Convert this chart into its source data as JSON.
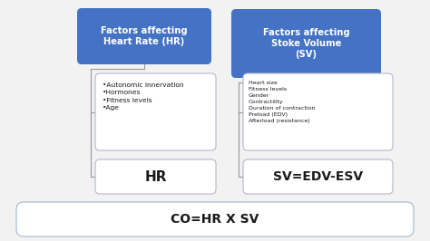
{
  "fig_bg": "#f2f2f2",
  "blue_box_color": "#4472C4",
  "white_box_color": "#ffffff",
  "white_box_edge": "#b0b8cc",
  "bottom_box_edge": "#a0b8d0",
  "text_white": "#ffffff",
  "text_dark": "#1a1a1a",
  "hr_title": "Factors affecting\nHeart Rate (HR)",
  "sv_title": "Factors affecting\nStoke Volume\n(SV)",
  "hr_items": "•Autonomic innervation\n•Hormones\n•Fitness levels\n•Age",
  "sv_items": "Heart size\nFitness levels\nGender\nContractility\nDuration of contraction\nPreload (EDV)\nAfterload (resistance)",
  "hr_formula": "HR",
  "sv_formula": "SV=EDV-ESV",
  "co_formula": "CO=HR X SV",
  "line_color": "#999999"
}
